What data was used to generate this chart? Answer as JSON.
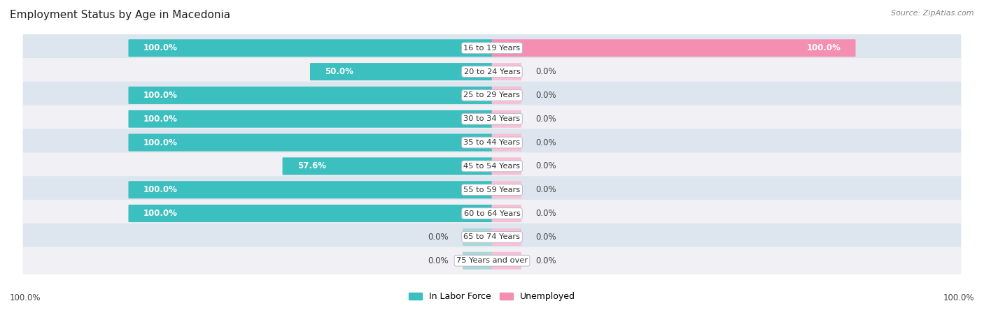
{
  "title": "Employment Status by Age in Macedonia",
  "source": "Source: ZipAtlas.com",
  "age_groups": [
    "16 to 19 Years",
    "20 to 24 Years",
    "25 to 29 Years",
    "30 to 34 Years",
    "35 to 44 Years",
    "45 to 54 Years",
    "55 to 59 Years",
    "60 to 64 Years",
    "65 to 74 Years",
    "75 Years and over"
  ],
  "labor_force": [
    100.0,
    50.0,
    100.0,
    100.0,
    100.0,
    57.6,
    100.0,
    100.0,
    0.0,
    0.0
  ],
  "unemployed": [
    100.0,
    0.0,
    0.0,
    0.0,
    0.0,
    0.0,
    0.0,
    0.0,
    0.0,
    0.0
  ],
  "labor_force_color": "#3bbfbf",
  "unemployed_color": "#f48fb1",
  "row_bg_color_dark": "#dde6ef",
  "row_bg_color_light": "#f0f0f5",
  "title_fontsize": 11,
  "value_fontsize": 8.5,
  "legend_fontsize": 9,
  "source_fontsize": 8,
  "background_color": "#ffffff",
  "stub_bar_lf_color": "#a8d8d8",
  "stub_bar_un_color": "#f8c0d4"
}
